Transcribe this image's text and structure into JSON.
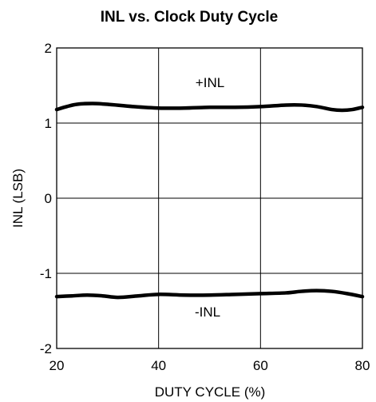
{
  "chart_data": {
    "type": "line",
    "title": "INL vs. Clock Duty Cycle",
    "xlabel": "DUTY CYCLE (%)",
    "ylabel": "INL (LSB)",
    "xlim": [
      20,
      80
    ],
    "ylim": [
      -2,
      2
    ],
    "xticks": [
      "20",
      "40",
      "60",
      "80"
    ],
    "yticks": [
      "2",
      "1",
      "0",
      "-1",
      "-2"
    ],
    "grid": true,
    "series": [
      {
        "name": "+INL",
        "x": [
          20,
          22,
          24,
          27,
          30,
          35,
          40,
          45,
          50,
          55,
          60,
          65,
          68,
          71,
          74,
          76,
          78,
          80
        ],
        "y": [
          1.18,
          1.22,
          1.25,
          1.26,
          1.25,
          1.22,
          1.2,
          1.2,
          1.21,
          1.21,
          1.22,
          1.24,
          1.24,
          1.22,
          1.18,
          1.17,
          1.18,
          1.21
        ]
      },
      {
        "name": "-INL",
        "x": [
          20,
          23,
          26,
          29,
          32,
          36,
          40,
          45,
          50,
          55,
          60,
          65,
          68,
          71,
          74,
          77,
          80
        ],
        "y": [
          -1.31,
          -1.3,
          -1.29,
          -1.3,
          -1.32,
          -1.3,
          -1.28,
          -1.29,
          -1.29,
          -1.28,
          -1.27,
          -1.26,
          -1.24,
          -1.23,
          -1.24,
          -1.27,
          -1.31
        ]
      }
    ],
    "annotations": [
      "+INL",
      "-INL"
    ]
  }
}
